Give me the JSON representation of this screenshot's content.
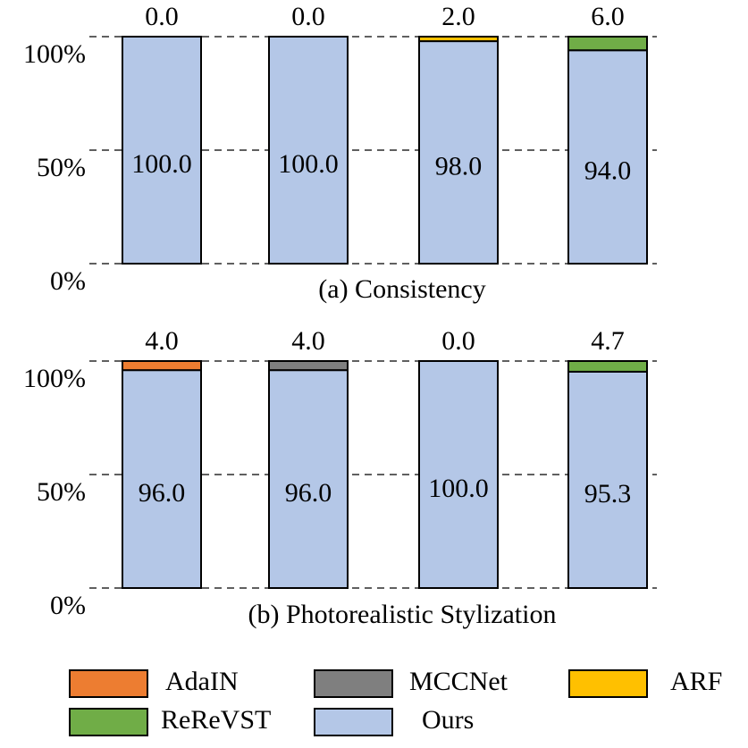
{
  "chart_data": [
    {
      "type": "bar",
      "stacked": true,
      "title": "(a) Consistency",
      "categories": [
        null,
        null,
        null,
        null
      ],
      "ylim": [
        0,
        100
      ],
      "yticks": [
        {
          "value": 0,
          "label": "0%"
        },
        {
          "value": 50,
          "label": "50%"
        },
        {
          "value": 100,
          "label": "100%"
        }
      ],
      "grid": true,
      "series": [
        {
          "name": "AdaIN",
          "color": "#ed7d31",
          "values": [
            0,
            null,
            null,
            null
          ],
          "value_labels": [
            "0.0",
            null,
            null,
            null
          ]
        },
        {
          "name": "MCCNet",
          "color": "#7f7f7f",
          "values": [
            null,
            0,
            null,
            null
          ],
          "value_labels": [
            null,
            "0.0",
            null,
            null
          ]
        },
        {
          "name": "ARF",
          "color": "#ffc000",
          "values": [
            null,
            null,
            2,
            null
          ],
          "value_labels": [
            null,
            null,
            "2.0",
            null
          ]
        },
        {
          "name": "ReReVST",
          "color": "#70ad47",
          "values": [
            null,
            null,
            null,
            6
          ],
          "value_labels": [
            null,
            null,
            null,
            "6.0"
          ]
        },
        {
          "name": "Ours",
          "color": "#b4c7e7",
          "values": [
            100,
            100,
            98,
            94
          ],
          "value_labels": [
            "100.0",
            "100.0",
            "98.0",
            "94.0"
          ]
        }
      ]
    },
    {
      "type": "bar",
      "stacked": true,
      "title": "(b) Photorealistic Stylization",
      "categories": [
        null,
        null,
        null,
        null
      ],
      "ylim": [
        0,
        100
      ],
      "yticks": [
        {
          "value": 0,
          "label": "0%"
        },
        {
          "value": 50,
          "label": "50%"
        },
        {
          "value": 100,
          "label": "100%"
        }
      ],
      "grid": true,
      "series": [
        {
          "name": "AdaIN",
          "color": "#ed7d31",
          "values": [
            4,
            null,
            null,
            null
          ],
          "value_labels": [
            "4.0",
            null,
            null,
            null
          ]
        },
        {
          "name": "MCCNet",
          "color": "#7f7f7f",
          "values": [
            null,
            4,
            null,
            null
          ],
          "value_labels": [
            null,
            "4.0",
            null,
            null
          ]
        },
        {
          "name": "ARF",
          "color": "#ffc000",
          "values": [
            null,
            null,
            0,
            null
          ],
          "value_labels": [
            null,
            null,
            "0.0",
            null
          ]
        },
        {
          "name": "ReReVST",
          "color": "#70ad47",
          "values": [
            null,
            null,
            null,
            4.7
          ],
          "value_labels": [
            null,
            null,
            null,
            "4.7"
          ]
        },
        {
          "name": "Ours",
          "color": "#b4c7e7",
          "values": [
            96,
            96,
            100,
            95.3
          ],
          "value_labels": [
            "96.0",
            "96.0",
            "100.0",
            "95.3"
          ]
        }
      ]
    }
  ]
}
